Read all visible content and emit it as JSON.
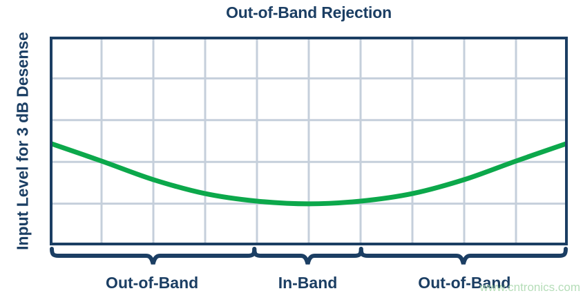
{
  "title": "Out-of-Band Rejection",
  "y_axis_label": "Input Level for 3 dB Desense",
  "band_labels": [
    {
      "label": "Out-of-Band"
    },
    {
      "label": "In-Band"
    },
    {
      "label": "Out-of-Band"
    }
  ],
  "watermark": "www.cntronics.com",
  "colors": {
    "navy": "#1B3E63",
    "grid": "#C5CFDB",
    "curve": "#0CA84B",
    "watermark_green": "#A9D8AC"
  },
  "chart_data": {
    "type": "line",
    "title": "Out-of-Band Rejection",
    "xlabel": "",
    "ylabel": "Input Level for 3 dB Desense",
    "x_axis_ticks": [],
    "y_axis_ticks": [],
    "grid": {
      "on": true,
      "columns": 10,
      "rows": 5
    },
    "legend": "none",
    "x_regions": [
      {
        "label": "Out-of-Band",
        "x_start": 0.0,
        "x_end": 0.395
      },
      {
        "label": "In-Band",
        "x_start": 0.395,
        "x_end": 0.601
      },
      {
        "label": "Out-of-Band",
        "x_start": 0.601,
        "x_end": 1.0
      }
    ],
    "series": [
      {
        "name": "input-level-for-3db-desense",
        "x": [
          0.0,
          0.1,
          0.2,
          0.3,
          0.4,
          0.5,
          0.6,
          0.7,
          0.8,
          0.9,
          1.0
        ],
        "y": [
          0.49,
          0.404,
          0.315,
          0.248,
          0.212,
          0.199,
          0.212,
          0.248,
          0.315,
          0.404,
          0.49
        ]
      }
    ],
    "notes": "y values are relative input level (fraction of plot height above x-axis); axes are unlabeled/qualitative"
  }
}
